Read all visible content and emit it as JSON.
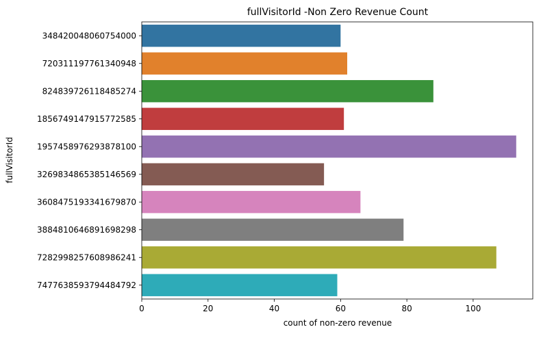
{
  "chart_data": {
    "type": "bar",
    "orientation": "horizontal",
    "title": "fullVisitorId -Non Zero Revenue Count",
    "xlabel": "count of non-zero revenue",
    "ylabel": "fullVisitorId",
    "xlim": [
      0,
      118
    ],
    "xticks": [
      0,
      20,
      40,
      60,
      80,
      100
    ],
    "grid": false,
    "categories": [
      "348420048060754000",
      "720311197761340948",
      "824839726118485274",
      "1856749147915772585",
      "1957458976293878100",
      "3269834865385146569",
      "3608475193341679870",
      "3884810646891698298",
      "7282998257608986241",
      "7477638593794484792"
    ],
    "values": [
      60,
      62,
      88,
      61,
      113,
      55,
      66,
      79,
      107,
      59
    ],
    "colors": [
      "#3274a1",
      "#e1812c",
      "#3a923a",
      "#c03d3e",
      "#9372b2",
      "#845b53",
      "#d684bd",
      "#7f7f7f",
      "#a9aa35",
      "#2eabb8"
    ]
  }
}
